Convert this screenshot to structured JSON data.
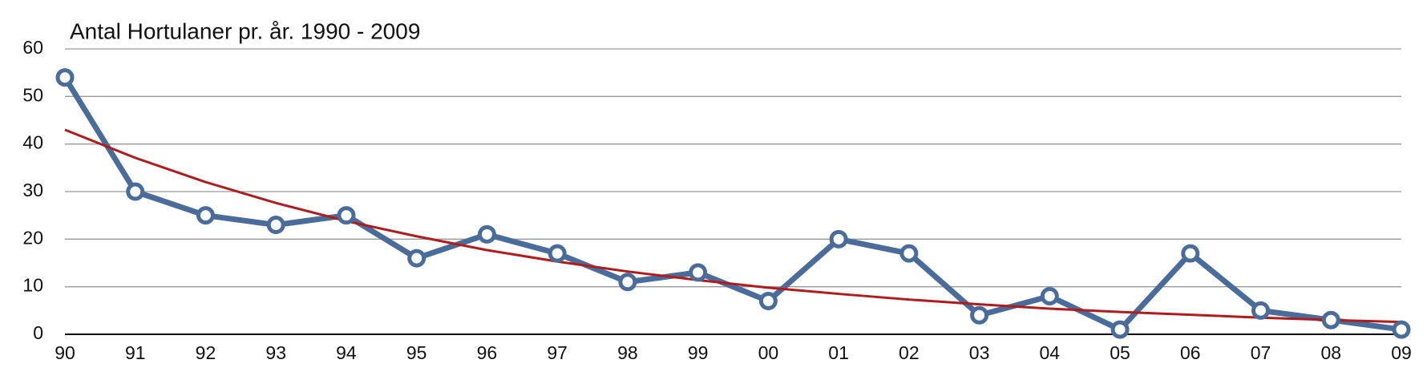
{
  "chart_data": {
    "type": "line",
    "title": "Antal Hortulaner pr. år. 1990 - 2009",
    "categories": [
      "90",
      "91",
      "92",
      "93",
      "94",
      "95",
      "96",
      "97",
      "98",
      "99",
      "00",
      "01",
      "02",
      "03",
      "04",
      "05",
      "06",
      "07",
      "08",
      "09"
    ],
    "series": [
      {
        "color": "#4a6c9b",
        "values": [
          54,
          30,
          25,
          23,
          25,
          16,
          21,
          17,
          11,
          13,
          7,
          20,
          17,
          4,
          8,
          1,
          17,
          5,
          3,
          1
        ]
      },
      {
        "color": "#b01c1c",
        "trend": true,
        "values": [
          43,
          37.1,
          32,
          27.6,
          23.8,
          20.6,
          17.7,
          15.3,
          13.2,
          11.4,
          9.8,
          8.5,
          7.3,
          6.3,
          5.4,
          4.7,
          4.1,
          3.5,
          3,
          2.6
        ]
      }
    ],
    "ylim": [
      0,
      60
    ],
    "yticks": [
      0,
      10,
      20,
      30,
      40,
      50,
      60
    ],
    "grid": true
  }
}
